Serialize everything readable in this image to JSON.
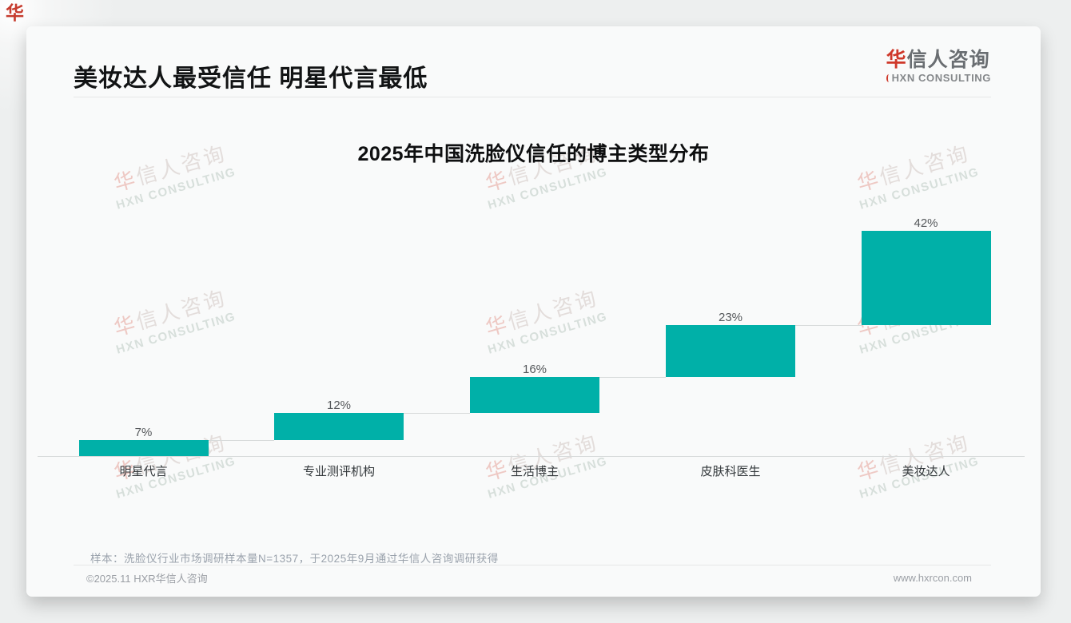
{
  "page": {
    "corner_mark": "华"
  },
  "header": {
    "title": "美妆达人最受信任 明星代言最低",
    "logo": {
      "zh_first": "华",
      "zh_rest": "信人咨询",
      "en": "HXN CONSULTING",
      "accent_color": "#cf382a"
    }
  },
  "chart_data": {
    "type": "bar",
    "subtype": "cumulative-waterfall",
    "title": "2025年中国洗脸仪信任的博主类型分布",
    "categories": [
      "明星代言",
      "专业测评机构",
      "生活博主",
      "皮肤科医生",
      "美妆达人"
    ],
    "values": [
      7,
      12,
      16,
      23,
      42
    ],
    "value_labels": [
      "7%",
      "12%",
      "16%",
      "23%",
      "42%"
    ],
    "unit": "%",
    "ylim": [
      0,
      100
    ],
    "grid": false,
    "legend": false,
    "bar_color": "#00B0A8",
    "axis_color": "#d8dbdb"
  },
  "watermark": {
    "zh_first": "华",
    "zh_rest": "信人咨询",
    "en": "HXN CONSULTING"
  },
  "footnote": "样本：洗脸仪行业市场调研样本量N=1357，于2025年9月通过华信人咨询调研获得",
  "footer": {
    "copyright": "©2025.11 HXR华信人咨询",
    "website": "www.hxrcon.com"
  }
}
